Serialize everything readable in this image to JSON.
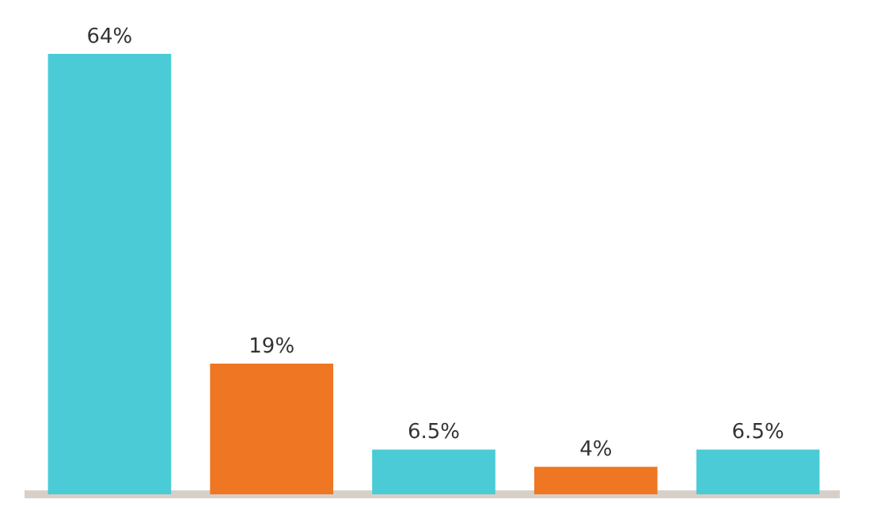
{
  "chart_data": {
    "type": "bar",
    "categories": [
      null,
      null,
      null,
      null,
      null
    ],
    "values": [
      64,
      19,
      6.5,
      4,
      6.5
    ],
    "colors": [
      "#4acbd6",
      "#ef7622",
      "#4acbd6",
      "#ef7622",
      "#4acbd6"
    ],
    "value_labels": [
      "64%",
      "19%",
      "6.5%",
      "4%",
      "6.5%"
    ],
    "grid": false,
    "legend": false
  }
}
